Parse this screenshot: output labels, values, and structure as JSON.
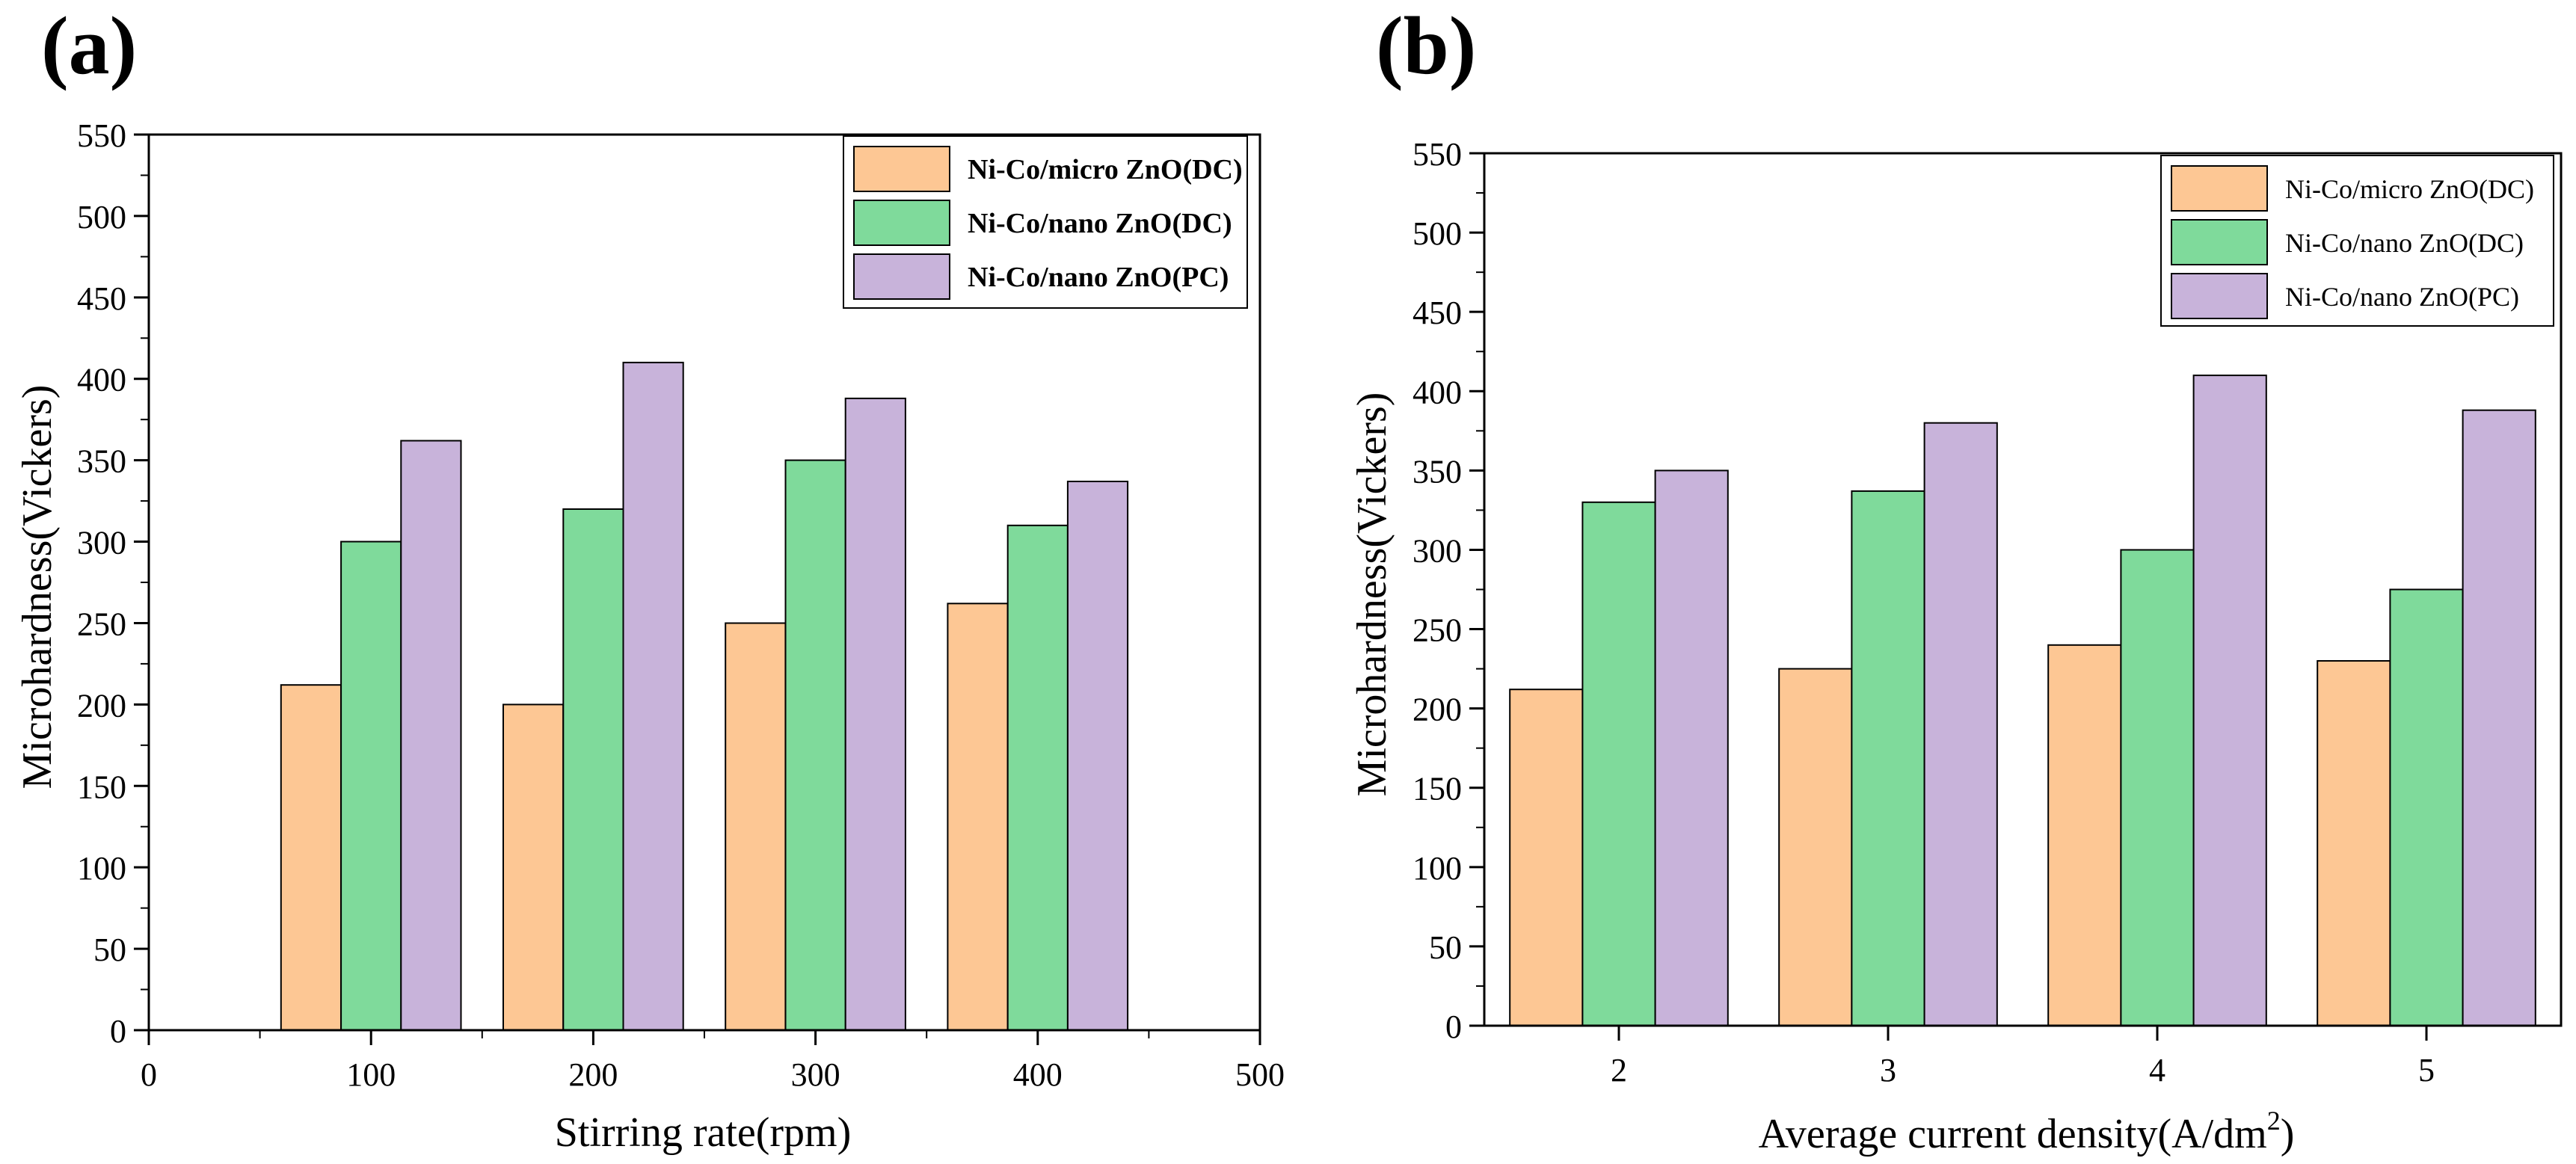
{
  "colors": {
    "micro_dc": "#FDC794",
    "nano_dc": "#7FDA9B",
    "nano_pc": "#C8B3DA",
    "axis": "#000000"
  },
  "chart_data": [
    {
      "panel_label": "(a)",
      "type": "bar",
      "xlabel": "Stirring rate(rpm)",
      "ylabel": "Microhardness(Vickers)",
      "x_axis_kind": "numeric",
      "xlim": [
        0,
        500
      ],
      "x_ticks": [
        "0",
        "100",
        "200",
        "300",
        "400",
        "500"
      ],
      "ylim": [
        0,
        550
      ],
      "y_ticks": [
        "0",
        "50",
        "100",
        "150",
        "200",
        "250",
        "300",
        "350",
        "400",
        "450",
        "500",
        "550"
      ],
      "categories": [
        "100",
        "200",
        "300",
        "400"
      ],
      "series": [
        {
          "name": "Ni-Co/micro ZnO(DC)",
          "values": [
            212,
            200,
            250,
            262
          ]
        },
        {
          "name": "Ni-Co/nano ZnO(DC)",
          "values": [
            300,
            320,
            350,
            310
          ]
        },
        {
          "name": "Ni-Co/nano ZnO(PC)",
          "values": [
            362,
            410,
            388,
            337
          ]
        }
      ],
      "legend_position": "top-right"
    },
    {
      "panel_label": "(b)",
      "type": "bar",
      "xlabel": "Average current density(A/dm",
      "xlabel_superscript": "2",
      "xlabel_suffix": ")",
      "ylabel": "Microhardness(Vickers)",
      "x_axis_kind": "categorical",
      "ylim": [
        0,
        550
      ],
      "y_ticks": [
        "0",
        "50",
        "100",
        "150",
        "200",
        "250",
        "300",
        "350",
        "400",
        "450",
        "500",
        "550"
      ],
      "categories": [
        "2",
        "3",
        "4",
        "5"
      ],
      "series": [
        {
          "name": "Ni-Co/micro ZnO(DC)",
          "values": [
            212,
            225,
            240,
            230
          ]
        },
        {
          "name": "Ni-Co/nano ZnO(DC)",
          "values": [
            330,
            337,
            300,
            275
          ]
        },
        {
          "name": "Ni-Co/nano ZnO(PC)",
          "values": [
            350,
            380,
            410,
            388
          ]
        }
      ],
      "legend_position": "top-right"
    }
  ]
}
